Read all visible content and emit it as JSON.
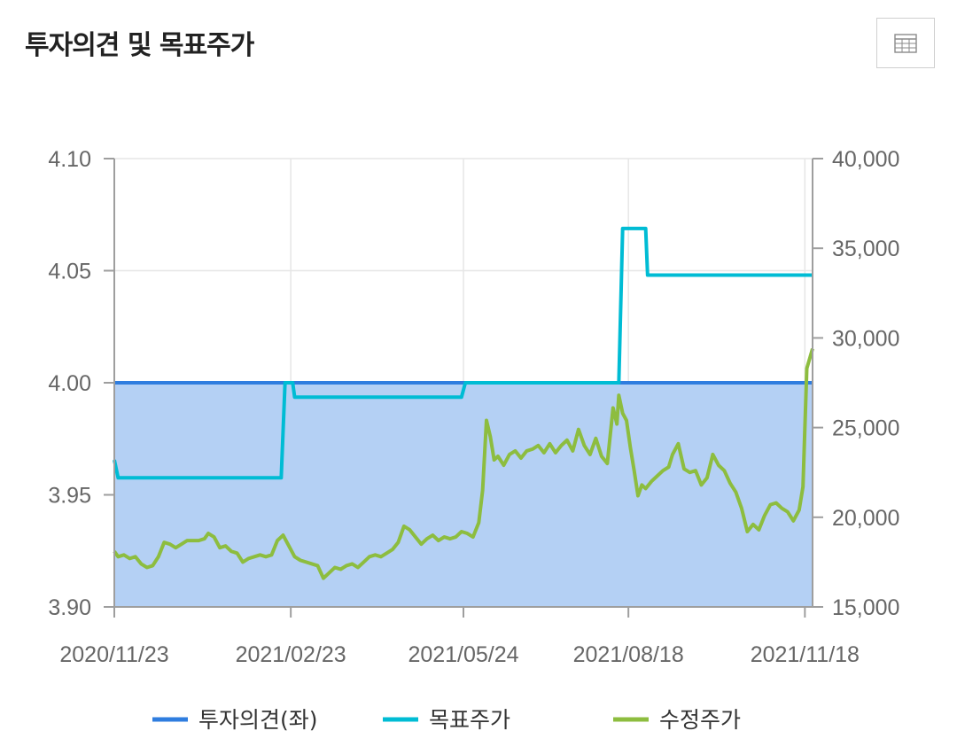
{
  "header": {
    "title": "투자의견 및 목표주가",
    "table_button_icon": "table-icon"
  },
  "colors": {
    "opinion": "#2f7ddf",
    "opinion_fill": "#b4d0f4",
    "target": "#00bcd4",
    "price": "#8dbd3f",
    "grid": "#e6e6e6",
    "axis": "#9e9e9e"
  },
  "chart_data": {
    "type": "line",
    "title": "투자의견 및 목표주가",
    "legend_position": "bottom",
    "grid": true,
    "x_range": [
      "2020-11-23",
      "2021-11-22"
    ],
    "x_ticks": [
      "2020/11/23",
      "2021/02/23",
      "2021/05/24",
      "2021/08/18",
      "2021/11/18"
    ],
    "y_left": {
      "range": [
        3.9,
        4.1
      ],
      "ticks": [
        "4.10",
        "4.05",
        "4.00",
        "3.95",
        "3.90"
      ]
    },
    "y_right": {
      "range": [
        15000,
        40000
      ],
      "ticks": [
        "40,000",
        "35,000",
        "30,000",
        "25,000",
        "20,000",
        "15,000"
      ]
    },
    "series": [
      {
        "name": "투자의견(좌)",
        "axis": "left",
        "style": "area",
        "points": [
          [
            "2020-11-23",
            4.0
          ],
          [
            "2021-11-22",
            4.0
          ]
        ]
      },
      {
        "name": "목표주가",
        "axis": "right",
        "style": "step",
        "points": [
          [
            "2020-11-23",
            23200
          ],
          [
            "2020-11-25",
            22200
          ],
          [
            "2021-02-18",
            22200
          ],
          [
            "2021-02-20",
            27500
          ],
          [
            "2021-02-24",
            27500
          ],
          [
            "2021-02-25",
            26700
          ],
          [
            "2021-05-23",
            26700
          ],
          [
            "2021-05-25",
            27500
          ],
          [
            "2021-08-13",
            27500
          ],
          [
            "2021-08-15",
            36100
          ],
          [
            "2021-08-27",
            36100
          ],
          [
            "2021-08-28",
            33500
          ],
          [
            "2021-11-22",
            33500
          ]
        ]
      },
      {
        "name": "수정주가",
        "axis": "right",
        "style": "line",
        "points": [
          [
            "2020-11-23",
            18100
          ],
          [
            "2020-11-25",
            17800
          ],
          [
            "2020-11-28",
            17900
          ],
          [
            "2020-12-01",
            17700
          ],
          [
            "2020-12-04",
            17800
          ],
          [
            "2020-12-07",
            17400
          ],
          [
            "2020-12-10",
            17200
          ],
          [
            "2020-12-13",
            17300
          ],
          [
            "2020-12-16",
            17800
          ],
          [
            "2020-12-19",
            18600
          ],
          [
            "2020-12-22",
            18500
          ],
          [
            "2020-12-25",
            18300
          ],
          [
            "2020-12-28",
            18500
          ],
          [
            "2020-12-31",
            18700
          ],
          [
            "2021-01-03",
            18700
          ],
          [
            "2021-01-06",
            18700
          ],
          [
            "2021-01-09",
            18800
          ],
          [
            "2021-01-11",
            19100
          ],
          [
            "2021-01-14",
            18900
          ],
          [
            "2021-01-17",
            18300
          ],
          [
            "2021-01-20",
            18400
          ],
          [
            "2021-01-23",
            18100
          ],
          [
            "2021-01-26",
            18000
          ],
          [
            "2021-01-29",
            17500
          ],
          [
            "2021-02-01",
            17700
          ],
          [
            "2021-02-04",
            17800
          ],
          [
            "2021-02-07",
            17900
          ],
          [
            "2021-02-10",
            17800
          ],
          [
            "2021-02-13",
            17900
          ],
          [
            "2021-02-16",
            18700
          ],
          [
            "2021-02-19",
            19000
          ],
          [
            "2021-02-22",
            18400
          ],
          [
            "2021-02-25",
            17800
          ],
          [
            "2021-02-28",
            17600
          ],
          [
            "2021-03-03",
            17500
          ],
          [
            "2021-03-06",
            17400
          ],
          [
            "2021-03-09",
            17300
          ],
          [
            "2021-03-12",
            16600
          ],
          [
            "2021-03-15",
            16900
          ],
          [
            "2021-03-18",
            17200
          ],
          [
            "2021-03-21",
            17100
          ],
          [
            "2021-03-24",
            17300
          ],
          [
            "2021-03-27",
            17400
          ],
          [
            "2021-03-30",
            17200
          ],
          [
            "2021-04-02",
            17500
          ],
          [
            "2021-04-05",
            17800
          ],
          [
            "2021-04-08",
            17900
          ],
          [
            "2021-04-11",
            17800
          ],
          [
            "2021-04-14",
            18000
          ],
          [
            "2021-04-17",
            18200
          ],
          [
            "2021-04-20",
            18600
          ],
          [
            "2021-04-23",
            19500
          ],
          [
            "2021-04-26",
            19300
          ],
          [
            "2021-04-29",
            18900
          ],
          [
            "2021-05-02",
            18500
          ],
          [
            "2021-05-05",
            18800
          ],
          [
            "2021-05-08",
            19000
          ],
          [
            "2021-05-11",
            18700
          ],
          [
            "2021-05-14",
            18900
          ],
          [
            "2021-05-17",
            18800
          ],
          [
            "2021-05-20",
            18900
          ],
          [
            "2021-05-23",
            19200
          ],
          [
            "2021-05-26",
            19100
          ],
          [
            "2021-05-29",
            18900
          ],
          [
            "2021-06-01",
            19700
          ],
          [
            "2021-06-03",
            21500
          ],
          [
            "2021-06-05",
            25400
          ],
          [
            "2021-06-07",
            24500
          ],
          [
            "2021-06-09",
            23200
          ],
          [
            "2021-06-11",
            23400
          ],
          [
            "2021-06-14",
            22900
          ],
          [
            "2021-06-17",
            23500
          ],
          [
            "2021-06-20",
            23700
          ],
          [
            "2021-06-23",
            23300
          ],
          [
            "2021-06-26",
            23700
          ],
          [
            "2021-06-29",
            23800
          ],
          [
            "2021-07-02",
            24000
          ],
          [
            "2021-07-05",
            23600
          ],
          [
            "2021-07-08",
            24100
          ],
          [
            "2021-07-11",
            23600
          ],
          [
            "2021-07-14",
            24000
          ],
          [
            "2021-07-17",
            24300
          ],
          [
            "2021-07-20",
            23700
          ],
          [
            "2021-07-23",
            24900
          ],
          [
            "2021-07-26",
            24000
          ],
          [
            "2021-07-29",
            23500
          ],
          [
            "2021-08-01",
            24400
          ],
          [
            "2021-08-04",
            23400
          ],
          [
            "2021-08-07",
            23000
          ],
          [
            "2021-08-10",
            26100
          ],
          [
            "2021-08-12",
            25200
          ],
          [
            "2021-08-13",
            26800
          ],
          [
            "2021-08-15",
            25800
          ],
          [
            "2021-08-17",
            25400
          ],
          [
            "2021-08-19",
            23900
          ],
          [
            "2021-08-21",
            22600
          ],
          [
            "2021-08-23",
            21200
          ],
          [
            "2021-08-25",
            21800
          ],
          [
            "2021-08-27",
            21600
          ],
          [
            "2021-08-30",
            22000
          ],
          [
            "2021-09-02",
            22300
          ],
          [
            "2021-09-05",
            22600
          ],
          [
            "2021-09-08",
            22800
          ],
          [
            "2021-09-10",
            23500
          ],
          [
            "2021-09-13",
            24100
          ],
          [
            "2021-09-16",
            22700
          ],
          [
            "2021-09-19",
            22500
          ],
          [
            "2021-09-22",
            22600
          ],
          [
            "2021-09-25",
            21800
          ],
          [
            "2021-09-28",
            22200
          ],
          [
            "2021-10-01",
            23500
          ],
          [
            "2021-10-04",
            22900
          ],
          [
            "2021-10-07",
            22600
          ],
          [
            "2021-10-10",
            21900
          ],
          [
            "2021-10-13",
            21400
          ],
          [
            "2021-10-16",
            20500
          ],
          [
            "2021-10-19",
            19200
          ],
          [
            "2021-10-22",
            19600
          ],
          [
            "2021-10-25",
            19300
          ],
          [
            "2021-10-28",
            20100
          ],
          [
            "2021-10-31",
            20700
          ],
          [
            "2021-11-03",
            20800
          ],
          [
            "2021-11-06",
            20500
          ],
          [
            "2021-11-09",
            20300
          ],
          [
            "2021-11-12",
            19800
          ],
          [
            "2021-11-15",
            20400
          ],
          [
            "2021-11-17",
            21700
          ],
          [
            "2021-11-19",
            28300
          ],
          [
            "2021-11-22",
            29400
          ]
        ]
      }
    ]
  }
}
